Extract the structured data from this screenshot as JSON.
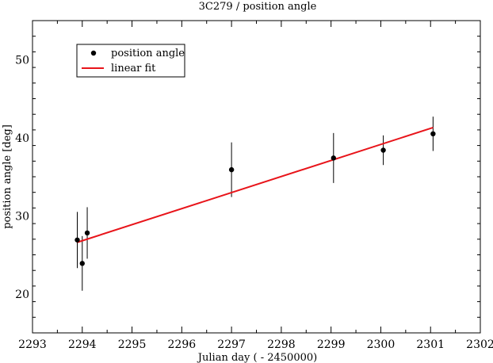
{
  "chart_data": {
    "type": "scatter",
    "title": "3C279 / position angle",
    "xlabel": "Julian day ( - 2450000)",
    "ylabel": "position angle [deg]",
    "xlim": [
      2293,
      2302
    ],
    "ylim": [
      15,
      55
    ],
    "xticks": [
      2293,
      2294,
      2295,
      2296,
      2297,
      2298,
      2299,
      2300,
      2301,
      2302
    ],
    "yticks": [
      20,
      30,
      40,
      50
    ],
    "grid": false,
    "legend_position": "top-left",
    "series": [
      {
        "name": "position angle",
        "kind": "points-with-errorbars",
        "color": "#000000",
        "points": [
          {
            "x": 2293.9,
            "y": 26.9,
            "err": 3.6
          },
          {
            "x": 2294.0,
            "y": 23.9,
            "err": 3.5
          },
          {
            "x": 2294.1,
            "y": 27.8,
            "err": 3.3
          },
          {
            "x": 2297.0,
            "y": 35.9,
            "err": 3.5
          },
          {
            "x": 2299.05,
            "y": 37.4,
            "err": 3.2
          },
          {
            "x": 2300.05,
            "y": 38.4,
            "err": 1.9
          },
          {
            "x": 2301.05,
            "y": 40.5,
            "err": 2.2
          }
        ]
      },
      {
        "name": "linear fit",
        "kind": "line",
        "color": "#e8141a",
        "x": [
          2293.9,
          2301.05
        ],
        "y": [
          26.6,
          41.3
        ]
      }
    ]
  }
}
